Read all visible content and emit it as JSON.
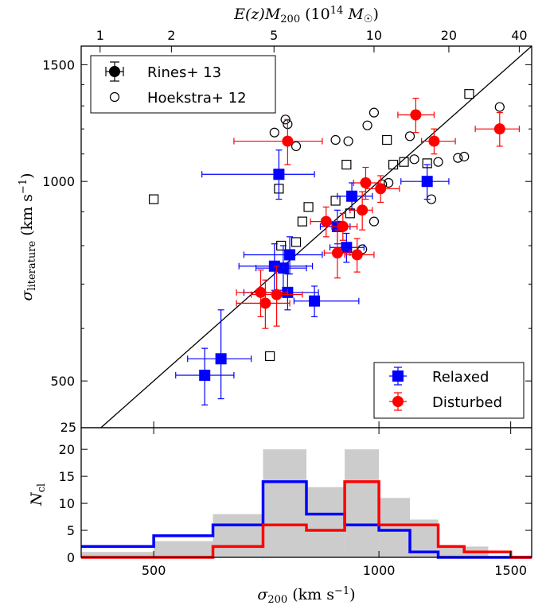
{
  "chart_data": [
    {
      "panel": "top",
      "type": "scatter",
      "xscale": "log",
      "yscale": "log",
      "xlim": [
        400,
        1600
      ],
      "ylim": [
        425,
        1600
      ],
      "xlabel": "σ200 (km s−1)",
      "ylabel": "σliterature (km s−1)",
      "ylabel_main": "σ",
      "ylabel_sub": "literature",
      "ylabel_tail": " (km s",
      "ylabel_exp": "−1",
      "ylabel_close": ")",
      "yticks": [
        500,
        1000,
        1500
      ],
      "ytick_labels": [
        "500",
        "1000",
        "1500"
      ],
      "ycorner_label": "25",
      "top_axis": {
        "label": "E(z)M200 (10^14 M☉)",
        "label_main": "E(z)M",
        "label_sub": "200",
        "label_mid": " (10",
        "label_exp": "14",
        "label_m": " M",
        "label_sun": "☉",
        "label_close": ")",
        "ticks": [
          {
            "label": "1",
            "sigma": 424
          },
          {
            "label": "2",
            "sigma": 528
          },
          {
            "label": "5",
            "sigma": 724
          },
          {
            "label": "10",
            "sigma": 985
          },
          {
            "label": "20",
            "sigma": 1240
          },
          {
            "label": "40",
            "sigma": 1540
          }
        ]
      },
      "one_to_one_line": true,
      "legend_placements": [
        "top-left",
        "bottom-right"
      ],
      "legends": [
        {
          "placement": "top-left",
          "entries": [
            {
              "label": "Rines+ 13",
              "marker": "filled-circle-errorbar"
            },
            {
              "label": "Hoekstra+ 12",
              "marker": "open-circle"
            }
          ]
        },
        {
          "placement": "bottom-right",
          "entries": [
            {
              "label": "Relaxed",
              "marker": "square",
              "color": "#0000ff"
            },
            {
              "label": "Disturbed",
              "marker": "circle",
              "color": "#ff0000"
            }
          ]
        }
      ],
      "series": [
        {
          "name": "Relaxed",
          "marker": "square",
          "color": "#0000ff",
          "points": [
            {
              "x": 585,
              "y": 510,
              "xerr": [
                50,
                55
              ],
              "yerr": [
                50,
                50
              ]
            },
            {
              "x": 615,
              "y": 540,
              "xerr": [
                60,
                60
              ],
              "yerr": [
                70,
                100
              ]
            },
            {
              "x": 735,
              "y": 1025,
              "xerr": [
                155,
                85
              ],
              "yerr": [
                85,
                90
              ]
            },
            {
              "x": 725,
              "y": 745,
              "xerr": [
                75,
                90
              ],
              "yerr": [
                60,
                60
              ]
            },
            {
              "x": 745,
              "y": 740,
              "xerr": [
                60,
                55
              ],
              "yerr": [
                55,
                60
              ]
            },
            {
              "x": 760,
              "y": 775,
              "xerr": [
                100,
                80
              ],
              "yerr": [
                50,
                50
              ]
            },
            {
              "x": 755,
              "y": 680,
              "xerr": [
                95,
                75
              ],
              "yerr": [
                40,
                45
              ]
            },
            {
              "x": 820,
              "y": 660,
              "xerr": [
                50,
                120
              ],
              "yerr": [
                35,
                35
              ]
            },
            {
              "x": 880,
              "y": 855,
              "xerr": [
                45,
                35
              ],
              "yerr": [
                50,
                50
              ]
            },
            {
              "x": 905,
              "y": 795,
              "xerr": [
                45,
                50
              ],
              "yerr": [
                40,
                40
              ]
            },
            {
              "x": 920,
              "y": 950,
              "xerr": [
                40,
                60
              ],
              "yerr": [
                45,
                45
              ]
            },
            {
              "x": 1160,
              "y": 1000,
              "xerr": [
                90,
                80
              ],
              "yerr": [
                60,
                60
              ]
            }
          ]
        },
        {
          "name": "Disturbed",
          "marker": "circle",
          "color": "#ff0000",
          "points": [
            {
              "x": 755,
              "y": 1150,
              "xerr": [
                115,
                85
              ],
              "yerr": [
                90,
                90
              ]
            },
            {
              "x": 705,
              "y": 655,
              "xerr": [
                60,
                55
              ],
              "yerr": [
                55,
                55
              ]
            },
            {
              "x": 695,
              "y": 680,
              "xerr": [
                50,
                60
              ],
              "yerr": [
                55,
                55
              ]
            },
            {
              "x": 730,
              "y": 675,
              "xerr": [
                55,
                60
              ],
              "yerr": [
                70,
                70
              ]
            },
            {
              "x": 850,
              "y": 870,
              "xerr": [
                40,
                30
              ],
              "yerr": [
                45,
                45
              ]
            },
            {
              "x": 880,
              "y": 780,
              "xerr": [
                35,
                35
              ],
              "yerr": [
                65,
                65
              ]
            },
            {
              "x": 895,
              "y": 855,
              "xerr": [
                30,
                40
              ],
              "yerr": [
                40,
                40
              ]
            },
            {
              "x": 935,
              "y": 775,
              "xerr": [
                35,
                50
              ],
              "yerr": [
                45,
                45
              ]
            },
            {
              "x": 950,
              "y": 905,
              "xerr": [
                35,
                30
              ],
              "yerr": [
                60,
                60
              ]
            },
            {
              "x": 960,
              "y": 995,
              "xerr": [
                35,
                40
              ],
              "yerr": [
                55,
                55
              ]
            },
            {
              "x": 1005,
              "y": 975,
              "xerr": [
                45,
                60
              ],
              "yerr": [
                45,
                45
              ]
            },
            {
              "x": 1120,
              "y": 1260,
              "xerr": [
                60,
                65
              ],
              "yerr": [
                75,
                75
              ]
            },
            {
              "x": 1185,
              "y": 1150,
              "xerr": [
                45,
                80
              ],
              "yerr": [
                50,
                50
              ]
            },
            {
              "x": 1450,
              "y": 1200,
              "xerr": [
                105,
                90
              ],
              "yerr": [
                70,
                70
              ]
            }
          ]
        },
        {
          "name": "Rines+ 13",
          "marker": "open-square",
          "color": "#000000",
          "points": [
            {
              "x": 500,
              "y": 940
            },
            {
              "x": 715,
              "y": 545
            },
            {
              "x": 735,
              "y": 975
            },
            {
              "x": 740,
              "y": 800
            },
            {
              "x": 775,
              "y": 810
            },
            {
              "x": 790,
              "y": 870
            },
            {
              "x": 805,
              "y": 915
            },
            {
              "x": 875,
              "y": 935
            },
            {
              "x": 905,
              "y": 1060
            },
            {
              "x": 915,
              "y": 895
            },
            {
              "x": 1025,
              "y": 1155
            },
            {
              "x": 1045,
              "y": 1060
            },
            {
              "x": 1080,
              "y": 1070
            },
            {
              "x": 1160,
              "y": 1065
            },
            {
              "x": 1320,
              "y": 1355
            }
          ]
        },
        {
          "name": "Hoekstra+ 12",
          "marker": "open-circle",
          "color": "#000000",
          "points": [
            {
              "x": 725,
              "y": 1185
            },
            {
              "x": 750,
              "y": 1240
            },
            {
              "x": 755,
              "y": 1220
            },
            {
              "x": 775,
              "y": 1130
            },
            {
              "x": 875,
              "y": 1155
            },
            {
              "x": 910,
              "y": 1150
            },
            {
              "x": 965,
              "y": 1215
            },
            {
              "x": 985,
              "y": 1270
            },
            {
              "x": 985,
              "y": 870
            },
            {
              "x": 1010,
              "y": 990
            },
            {
              "x": 1030,
              "y": 995
            },
            {
              "x": 950,
              "y": 790
            },
            {
              "x": 1100,
              "y": 1170
            },
            {
              "x": 1115,
              "y": 1080
            },
            {
              "x": 1175,
              "y": 940
            },
            {
              "x": 1200,
              "y": 1070
            },
            {
              "x": 1275,
              "y": 1085
            },
            {
              "x": 1300,
              "y": 1090
            },
            {
              "x": 1450,
              "y": 1295
            }
          ]
        }
      ]
    },
    {
      "panel": "bottom",
      "type": "histogram",
      "xscale": "log",
      "xlim": [
        400,
        1600
      ],
      "ylim": [
        0,
        24
      ],
      "xlabel": "σ200 (km s−1)",
      "xlabel_main": "σ",
      "xlabel_sub": "200",
      "xlabel_tail": " (km s",
      "xlabel_exp": "−1",
      "xlabel_close": ")",
      "ylabel": "Ncl",
      "ylabel_main": "N",
      "ylabel_sub": "cl",
      "xticks": [
        500,
        1000,
        1500
      ],
      "xtick_labels": [
        "500",
        "1000",
        "1500"
      ],
      "yticks": [
        0,
        5,
        10,
        15,
        20
      ],
      "ytick_labels": [
        "0",
        "5",
        "10",
        "15",
        "20"
      ],
      "bin_edges": [
        400,
        500,
        600,
        700,
        800,
        900,
        1000,
        1100,
        1200,
        1300,
        1400,
        1500,
        1600
      ],
      "series": [
        {
          "name": "All",
          "style": "filled",
          "color": "#cccccc",
          "values": [
            1,
            3,
            8,
            20,
            13,
            20,
            11,
            7,
            2,
            2,
            0,
            0
          ]
        },
        {
          "name": "Relaxed",
          "style": "step",
          "color": "#0000ff",
          "values": [
            2,
            4,
            6,
            14,
            8,
            6,
            5,
            1,
            0,
            0,
            0,
            0
          ]
        },
        {
          "name": "Disturbed",
          "style": "step",
          "color": "#ff0000",
          "values": [
            0,
            0,
            2,
            6,
            5,
            14,
            6,
            6,
            2,
            1,
            1,
            0
          ]
        }
      ]
    }
  ]
}
